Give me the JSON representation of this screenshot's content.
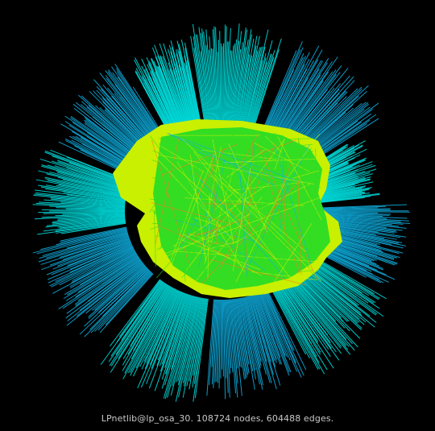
{
  "caption": "LPnetlib@lp_osa_30. 108724 nodes, 604488 edges.",
  "colors": {
    "background": "#000000",
    "outer_rays": "#00e6e6",
    "outer_rays_alt": "#0fb4e6",
    "core_green": "#33dd22",
    "core_yellow": "#c8f000",
    "core_orange": "#ff7722",
    "caption_text": "#c8c8c8"
  }
}
